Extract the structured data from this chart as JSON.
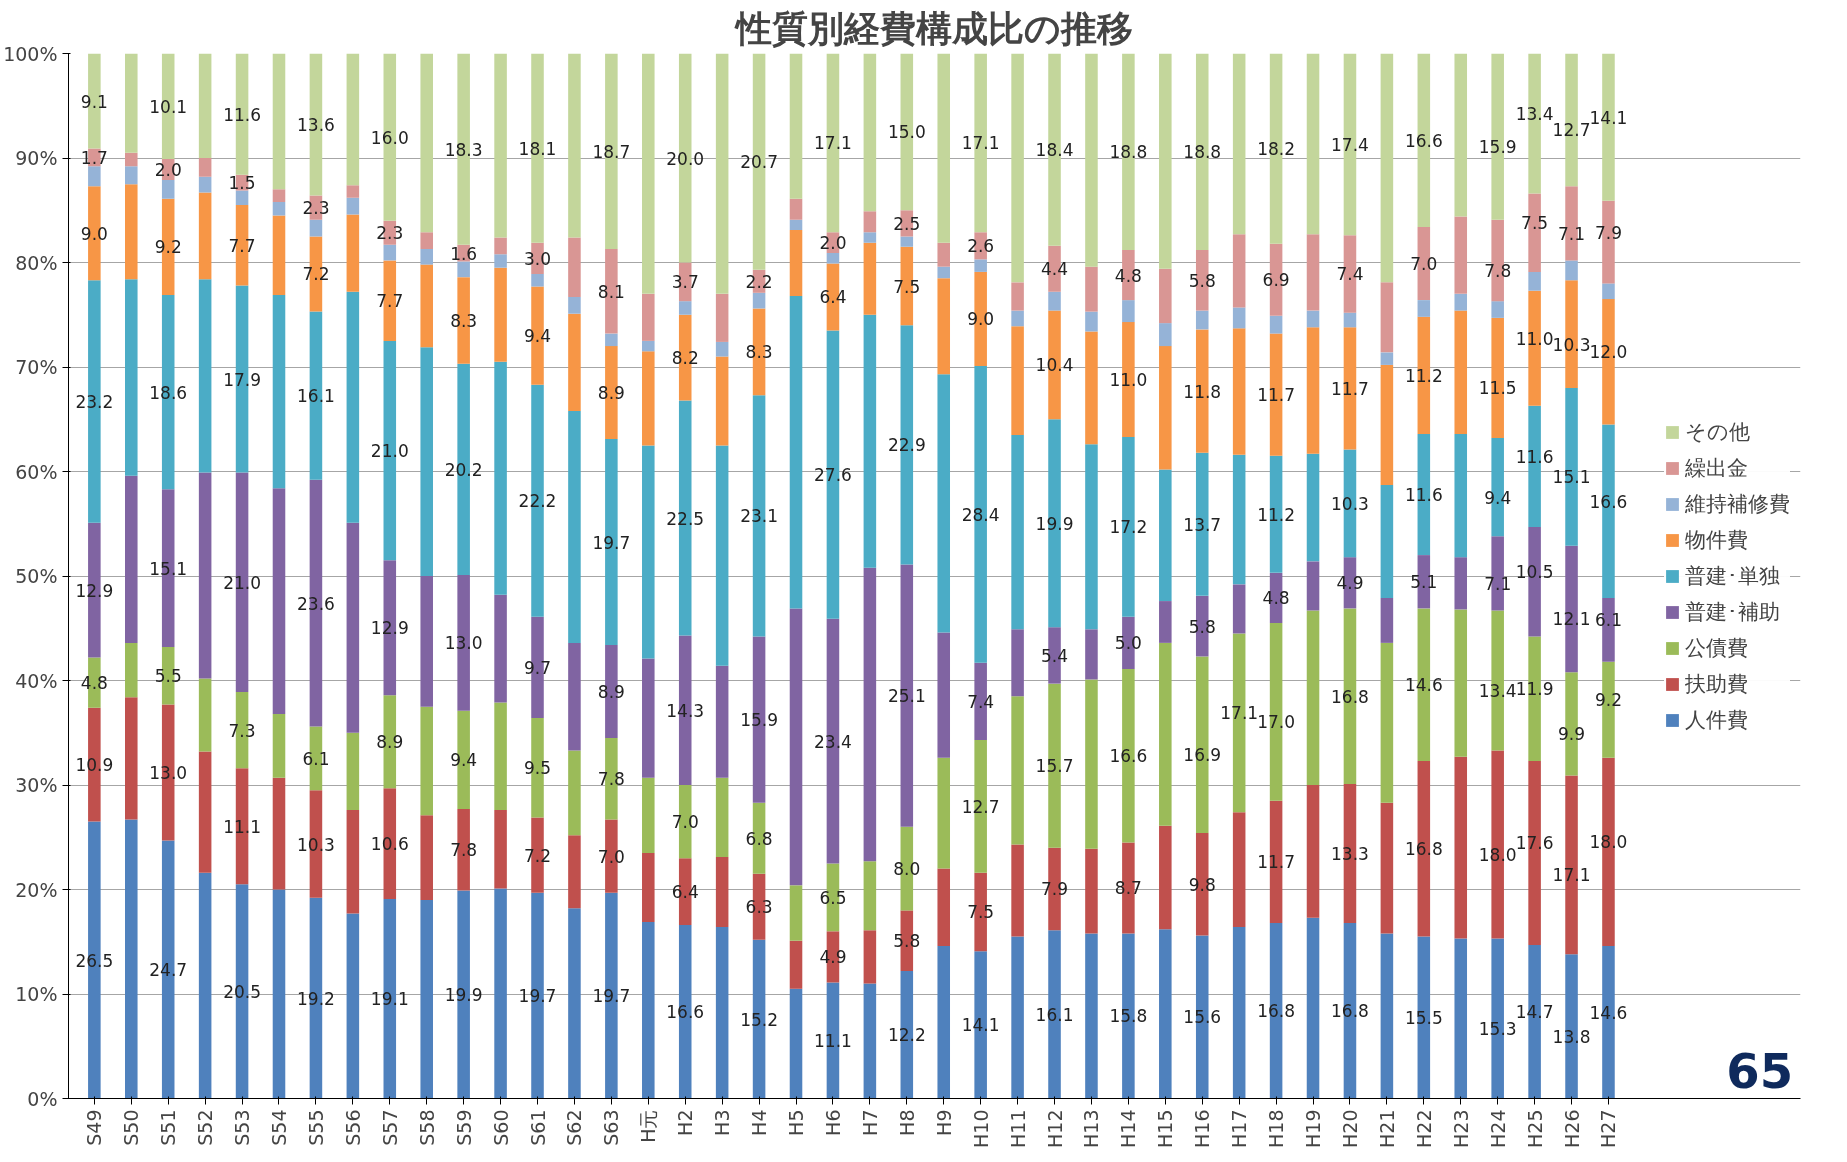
{
  "chart_data": {
    "type": "bar",
    "stacked": true,
    "title": "性質別経費構成比の推移",
    "categories": [
      "S49",
      "S50",
      "S51",
      "S52",
      "S53",
      "S54",
      "S55",
      "S56",
      "S57",
      "S58",
      "S59",
      "S60",
      "S61",
      "S62",
      "S63",
      "H元",
      "H2",
      "H3",
      "H4",
      "H5",
      "H6",
      "H7",
      "H8",
      "H9",
      "H10",
      "H11",
      "H12",
      "H13",
      "H14",
      "H15",
      "H16",
      "H17",
      "H18",
      "H19",
      "H20",
      "H21",
      "H22",
      "H23",
      "H24",
      "H25",
      "H26",
      "H27"
    ],
    "ylim": [
      0,
      100
    ],
    "yticks": [
      {
        "value": 0,
        "label": "0%"
      },
      {
        "value": 10,
        "label": "10%"
      },
      {
        "value": 20,
        "label": "20%"
      },
      {
        "value": 30,
        "label": "30%"
      },
      {
        "value": 40,
        "label": "40%"
      },
      {
        "value": 50,
        "label": "50%"
      },
      {
        "value": 60,
        "label": "60%"
      },
      {
        "value": 70,
        "label": "70%"
      },
      {
        "value": 80,
        "label": "80%"
      },
      {
        "value": 90,
        "label": "90%"
      },
      {
        "value": 100,
        "label": "100%"
      }
    ],
    "grid": "y",
    "legend": "right",
    "annotations": [
      "65"
    ],
    "series": [
      {
        "name": "人件費",
        "color": "#4f81bd",
        "values": [
          26.5,
          26.7,
          24.7,
          21.6,
          20.5,
          20.0,
          19.2,
          17.7,
          19.1,
          19.0,
          19.9,
          20.1,
          19.7,
          18.2,
          19.7,
          16.9,
          16.6,
          16.4,
          15.2,
          10.5,
          11.1,
          11.0,
          12.2,
          14.6,
          14.1,
          15.5,
          16.1,
          15.8,
          15.8,
          16.2,
          15.6,
          16.4,
          16.8,
          17.3,
          16.8,
          15.8,
          15.5,
          15.3,
          15.3,
          14.7,
          13.8,
          14.6
        ],
        "value_labels": [
          "26.5",
          null,
          "24.7",
          null,
          "20.5",
          null,
          "19.2",
          null,
          "19.1",
          null,
          "19.9",
          null,
          "19.7",
          null,
          "19.7",
          null,
          "16.6",
          null,
          "15.2",
          null,
          "11.1",
          null,
          "12.2",
          null,
          "14.1",
          null,
          "16.1",
          null,
          "15.8",
          null,
          "15.6",
          null,
          "16.8",
          null,
          "16.8",
          null,
          "15.5",
          null,
          "15.3",
          "14.7",
          "13.8",
          "14.6"
        ]
      },
      {
        "name": "扶助費",
        "color": "#c0504d",
        "values": [
          10.9,
          11.7,
          13.0,
          11.6,
          11.1,
          10.7,
          10.3,
          9.9,
          10.6,
          8.1,
          7.8,
          7.5,
          7.2,
          7.0,
          7.0,
          6.6,
          6.4,
          6.7,
          6.3,
          4.6,
          4.9,
          5.1,
          5.8,
          7.4,
          7.5,
          8.8,
          7.9,
          8.1,
          8.7,
          9.9,
          9.8,
          11.0,
          11.7,
          12.7,
          13.3,
          12.5,
          16.8,
          17.4,
          18.0,
          17.6,
          17.1,
          18.0
        ],
        "value_labels": [
          "10.9",
          null,
          "13.0",
          null,
          "11.1",
          null,
          "10.3",
          null,
          "10.6",
          null,
          "7.8",
          null,
          "7.2",
          null,
          "7.0",
          null,
          "6.4",
          null,
          "6.3",
          null,
          "4.9",
          null,
          "5.8",
          null,
          "7.5",
          null,
          "7.9",
          null,
          "8.7",
          null,
          "9.8",
          null,
          "11.7",
          null,
          "13.3",
          null,
          "16.8",
          null,
          "18.0",
          "17.6",
          "17.1",
          "18.0"
        ]
      },
      {
        "name": "公債費",
        "color": "#9bbb59",
        "values": [
          4.8,
          5.2,
          5.5,
          7.0,
          7.3,
          6.1,
          6.1,
          7.4,
          8.9,
          10.4,
          9.4,
          10.3,
          9.5,
          8.1,
          7.8,
          7.2,
          7.0,
          7.6,
          6.8,
          5.3,
          6.5,
          6.6,
          8.0,
          10.6,
          12.7,
          14.2,
          15.7,
          16.2,
          16.6,
          17.5,
          16.9,
          17.1,
          17.0,
          16.7,
          16.8,
          15.3,
          14.6,
          14.1,
          13.4,
          11.9,
          9.9,
          9.2
        ],
        "value_labels": [
          "4.8",
          null,
          "5.5",
          null,
          "7.3",
          null,
          "6.1",
          null,
          "8.9",
          null,
          "9.4",
          null,
          "9.5",
          null,
          "7.8",
          null,
          "7.0",
          null,
          "6.8",
          null,
          "6.5",
          null,
          "8.0",
          null,
          "12.7",
          null,
          "15.7",
          null,
          "16.6",
          null,
          "16.9",
          "17.1",
          "17.0",
          null,
          "16.8",
          null,
          "14.6",
          null,
          "13.4",
          "11.9",
          "9.9",
          "9.2"
        ]
      },
      {
        "name": "普建･補助",
        "color": "#8064a2",
        "values": [
          12.9,
          16.0,
          15.1,
          19.7,
          21.0,
          21.6,
          23.6,
          20.1,
          12.9,
          12.5,
          13.0,
          10.3,
          9.7,
          10.3,
          8.9,
          11.4,
          14.3,
          10.7,
          15.9,
          26.5,
          23.4,
          28.1,
          25.1,
          12.0,
          7.4,
          6.4,
          5.4,
          4.8,
          5.0,
          4.0,
          5.8,
          4.7,
          4.8,
          4.7,
          4.9,
          4.3,
          5.1,
          5.0,
          7.1,
          10.5,
          12.1,
          6.1
        ],
        "value_labels": [
          "12.9",
          null,
          "15.1",
          null,
          "21.0",
          null,
          "23.6",
          null,
          "12.9",
          null,
          "13.0",
          null,
          "9.7",
          null,
          "8.9",
          null,
          "14.3",
          null,
          "15.9",
          null,
          "23.4",
          null,
          "25.1",
          null,
          "7.4",
          null,
          "5.4",
          null,
          "5.0",
          null,
          "5.8",
          null,
          "4.8",
          null,
          "4.9",
          null,
          "5.1",
          null,
          "7.1",
          "10.5",
          "12.1",
          "6.1"
        ]
      },
      {
        "name": "普建･単独",
        "color": "#4bacc6",
        "values": [
          23.2,
          18.8,
          18.6,
          18.5,
          17.9,
          18.5,
          16.1,
          22.1,
          21.0,
          21.9,
          20.2,
          22.3,
          22.2,
          22.2,
          19.7,
          20.4,
          22.5,
          21.1,
          23.1,
          29.9,
          27.6,
          24.2,
          22.9,
          24.7,
          28.4,
          18.6,
          19.9,
          17.7,
          17.2,
          12.6,
          13.7,
          12.4,
          11.2,
          10.3,
          10.3,
          10.8,
          11.6,
          11.8,
          9.4,
          11.6,
          15.1,
          16.6
        ],
        "value_labels": [
          "23.2",
          null,
          "18.6",
          null,
          "17.9",
          null,
          "16.1",
          null,
          "21.0",
          null,
          "20.2",
          null,
          "22.2",
          null,
          "19.7",
          null,
          "22.5",
          null,
          "23.1",
          null,
          "27.6",
          null,
          "22.9",
          null,
          "28.4",
          null,
          "19.9",
          null,
          "17.2",
          null,
          "13.7",
          null,
          "11.2",
          null,
          "10.3",
          null,
          "11.6",
          null,
          "9.4",
          "11.6",
          "15.1",
          "16.6"
        ]
      },
      {
        "name": "物件費",
        "color": "#f79646",
        "values": [
          9.0,
          9.1,
          9.2,
          8.3,
          7.7,
          7.6,
          7.2,
          7.4,
          7.7,
          7.9,
          8.3,
          9.0,
          9.4,
          9.3,
          8.9,
          9.0,
          8.2,
          8.5,
          8.3,
          6.3,
          6.4,
          6.9,
          7.5,
          9.2,
          9.0,
          10.4,
          10.4,
          10.8,
          11.0,
          11.8,
          11.8,
          12.1,
          11.7,
          12.1,
          11.7,
          11.5,
          11.2,
          11.8,
          11.5,
          11.0,
          10.3,
          12.0
        ],
        "value_labels": [
          "9.0",
          null,
          "9.2",
          null,
          "7.7",
          null,
          "7.2",
          null,
          "7.7",
          null,
          "8.3",
          null,
          "9.4",
          null,
          "8.9",
          null,
          "8.2",
          null,
          "8.3",
          null,
          "6.4",
          null,
          "7.5",
          null,
          "9.0",
          null,
          "10.4",
          null,
          "11.0",
          null,
          "11.8",
          null,
          "11.7",
          null,
          "11.7",
          null,
          "11.2",
          null,
          "11.5",
          "11.0",
          "10.3",
          "12.0"
        ]
      },
      {
        "name": "維持補修費",
        "color": "#95b3d7",
        "values": [
          1.9,
          1.7,
          1.8,
          1.5,
          1.4,
          1.3,
          1.6,
          1.6,
          1.5,
          1.5,
          1.5,
          1.3,
          1.2,
          1.6,
          1.2,
          1.0,
          1.3,
          1.4,
          1.5,
          1.0,
          1.0,
          1.0,
          1.0,
          1.1,
          1.2,
          1.5,
          1.8,
          1.9,
          2.1,
          2.2,
          1.8,
          2.0,
          1.7,
          1.6,
          1.4,
          1.2,
          1.6,
          1.6,
          1.6,
          1.8,
          1.9,
          1.5
        ]
      },
      {
        "name": "繰出金",
        "color": "#d99694",
        "values": [
          1.7,
          1.3,
          2.0,
          1.8,
          1.5,
          1.2,
          2.3,
          1.2,
          2.3,
          1.6,
          1.6,
          1.6,
          3.0,
          5.7,
          8.1,
          4.5,
          3.7,
          4.6,
          2.2,
          2.0,
          2.0,
          2.0,
          2.5,
          2.3,
          2.6,
          2.7,
          4.4,
          4.3,
          4.8,
          5.2,
          5.8,
          7.0,
          6.9,
          7.3,
          7.4,
          6.7,
          7.0,
          7.4,
          7.8,
          7.5,
          7.1,
          7.9
        ],
        "value_labels": [
          "1.7",
          null,
          "2.0",
          null,
          "1.5",
          null,
          "2.3",
          null,
          "2.3",
          null,
          "1.6",
          null,
          "3.0",
          null,
          "8.1",
          null,
          "3.7",
          null,
          "2.2",
          null,
          "2.0",
          null,
          "2.5",
          null,
          "2.6",
          null,
          "4.4",
          null,
          "4.8",
          null,
          "5.8",
          null,
          "6.9",
          null,
          "7.4",
          null,
          "7.0",
          null,
          "7.8",
          "7.5",
          "7.1",
          "7.9"
        ]
      },
      {
        "name": "その他",
        "color": "#c3d69b",
        "values": [
          9.1,
          9.5,
          10.1,
          10.0,
          11.6,
          13.0,
          13.6,
          12.6,
          16.0,
          17.1,
          18.3,
          17.6,
          18.1,
          17.6,
          18.7,
          23.0,
          20.0,
          23.0,
          20.7,
          13.9,
          17.1,
          15.1,
          15.0,
          18.1,
          17.1,
          21.9,
          18.4,
          20.4,
          18.8,
          20.6,
          18.8,
          17.3,
          18.2,
          17.3,
          17.4,
          21.9,
          16.6,
          15.6,
          15.9,
          13.4,
          12.7,
          14.1
        ],
        "value_labels": [
          "9.1",
          null,
          "10.1",
          null,
          "11.6",
          null,
          "13.6",
          null,
          "16.0",
          null,
          "18.3",
          null,
          "18.1",
          null,
          "18.7",
          null,
          "20.0",
          null,
          "20.7",
          null,
          "17.1",
          null,
          "15.0",
          null,
          "17.1",
          null,
          "18.4",
          null,
          "18.8",
          null,
          "18.8",
          null,
          "18.2",
          null,
          "17.4",
          null,
          "16.6",
          null,
          "15.9",
          "13.4",
          "12.7",
          "14.1"
        ]
      }
    ]
  }
}
